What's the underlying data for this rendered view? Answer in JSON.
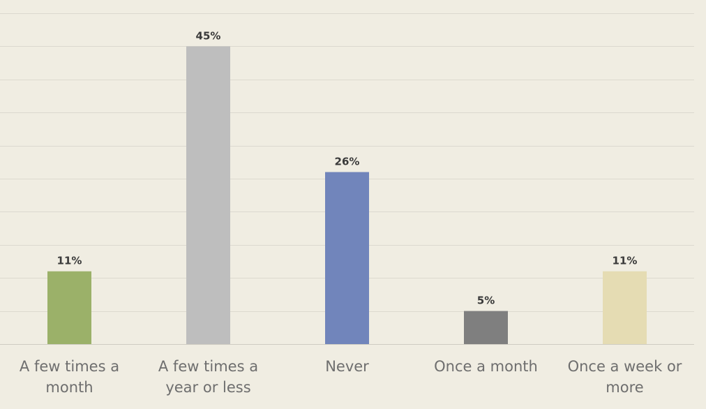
{
  "chart_data": {
    "type": "bar",
    "categories": [
      [
        "A few times a",
        "month"
      ],
      [
        "A few times a",
        "year or less"
      ],
      [
        "Never"
      ],
      [
        "Once a month"
      ],
      [
        "Once a week or",
        "more"
      ]
    ],
    "values": [
      11,
      45,
      26,
      5,
      11
    ],
    "value_labels": [
      "11%",
      "45%",
      "26%",
      "5%",
      "11%"
    ],
    "colors": [
      "#9bb169",
      "#bebebe",
      "#7185bb",
      "#7f7f7f",
      "#e5dcb3"
    ],
    "ylim": [
      0,
      50
    ],
    "grid": true,
    "title": "",
    "xlabel": "",
    "ylabel": ""
  }
}
